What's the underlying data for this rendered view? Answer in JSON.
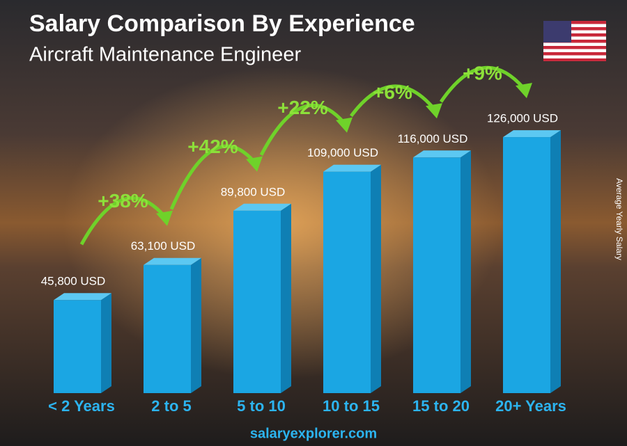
{
  "chart_data": {
    "type": "bar3d",
    "title": "Salary Comparison By Experience",
    "subtitle": "Aircraft Maintenance Engineer",
    "axis_label": "Average Yearly Salary",
    "footer": "salaryexplorer.com",
    "categories": [
      "< 2 Years",
      "2 to 5",
      "5 to 10",
      "10 to 15",
      "15 to 20",
      "20+ Years"
    ],
    "values": [
      45800,
      63100,
      89800,
      109000,
      116000,
      126000
    ],
    "value_labels": [
      "45,800 USD",
      "63,100 USD",
      "89,800 USD",
      "109,000 USD",
      "116,000 USD",
      "126,000 USD"
    ],
    "changes": [
      "+38%",
      "+42%",
      "+22%",
      "+6%",
      "+9%"
    ],
    "color": "#1ba6e3"
  }
}
